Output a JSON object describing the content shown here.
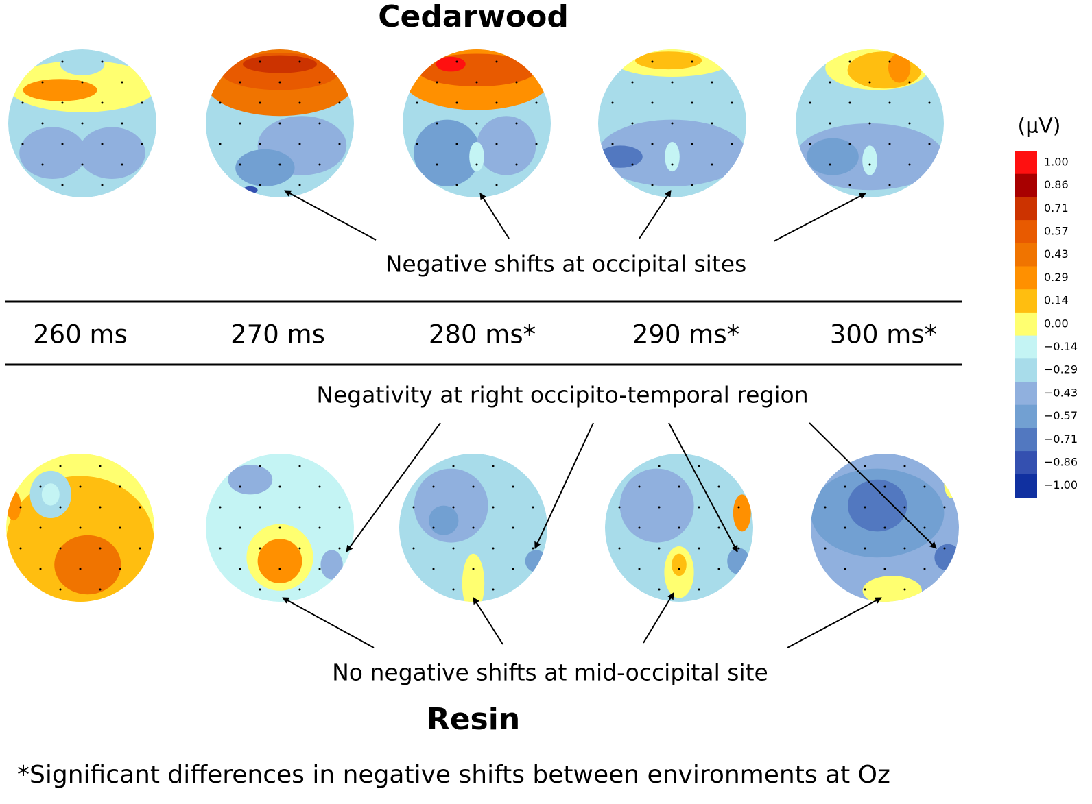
{
  "title_top": "Cedarwood",
  "annotation_top": "Negative shifts at occipital sites",
  "times": [
    "260 ms",
    "270 ms",
    "280 ms*",
    "290 ms*",
    "300 ms*"
  ],
  "annotation_mid": "Negativity at right occipito-temporal region",
  "annotation_bottom": "No negative shifts at mid-occipital site",
  "title_bottom": "Resin",
  "footnote": "*Significant differences in negative shifts between environments at Oz",
  "colorbar": {
    "unit": "(μV)",
    "ticks": [
      {
        "value": 1,
        "label": "1.00"
      },
      {
        "value": 0.86,
        "label": "0.86"
      },
      {
        "value": 0.71,
        "label": "0.71"
      },
      {
        "value": 0.57,
        "label": "0.57"
      },
      {
        "value": 0.43,
        "label": "0.43"
      },
      {
        "value": 0.29,
        "label": "0.29"
      },
      {
        "value": 0.14,
        "label": "0.14"
      },
      {
        "value": 0,
        "label": "0.00"
      },
      {
        "value": -0.14,
        "label": "−0.14"
      },
      {
        "value": -0.29,
        "label": "−0.29"
      },
      {
        "value": -0.43,
        "label": "−0.43"
      },
      {
        "value": -0.57,
        "label": "−0.57"
      },
      {
        "value": -0.71,
        "label": "−0.71"
      },
      {
        "value": -0.86,
        "label": "−0.86"
      },
      {
        "value": -1,
        "label": "−1.00"
      }
    ],
    "colors": [
      "#ff1010",
      "#a80000",
      "#cc3300",
      "#e85a00",
      "#f07400",
      "#ff9000",
      "#ffbe10",
      "#ffff70",
      "#c4f4f4",
      "#a8dcea",
      "#90b0de",
      "#72a0d2",
      "#5278c0",
      "#3450b0",
      "#1030a0"
    ]
  }
}
